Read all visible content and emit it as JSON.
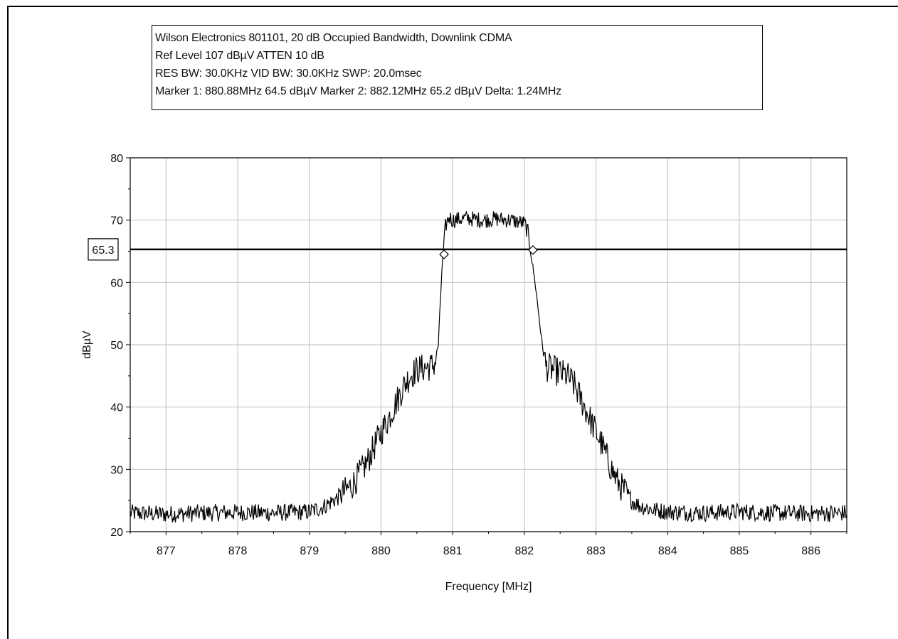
{
  "info_box": {
    "line1": "Wilson Electronics 801101, 20 dB Occupied Bandwidth, Downlink CDMA",
    "line2": "Ref Level 107 dBµV    ATTEN 10 dB",
    "line3": "RES BW: 30.0KHz  VID BW: 30.0KHz  SWP: 20.0msec",
    "line4": "Marker 1: 880.88MHz  64.5 dBµV    Marker 2: 882.12MHz  65.2 dBµV Delta: 1.24MHz"
  },
  "chart_data": {
    "type": "line",
    "title": "",
    "xlabel": "Frequency [MHz]",
    "ylabel": "dBµV",
    "xlim": [
      876.5,
      886.5
    ],
    "ylim": [
      20,
      80
    ],
    "x_ticks": [
      "877",
      "878",
      "879",
      "880",
      "881",
      "882",
      "883",
      "884",
      "885",
      "886"
    ],
    "y_ticks": [
      "20",
      "30",
      "40",
      "50",
      "60",
      "70",
      "80"
    ],
    "grid": true,
    "reference_line": {
      "value": 65.3,
      "label": "65.3"
    },
    "markers": [
      {
        "name": "Marker 1",
        "x": 880.88,
        "y": 64.5
      },
      {
        "name": "Marker 2",
        "x": 882.12,
        "y": 65.2
      }
    ],
    "series": [
      {
        "color": "#000000",
        "x": [
          876.5,
          877.0,
          877.5,
          878.0,
          878.5,
          879.0,
          879.2,
          879.4,
          879.6,
          879.8,
          880.0,
          880.1,
          880.2,
          880.3,
          880.4,
          880.5,
          880.6,
          880.7,
          880.75,
          880.8,
          880.85,
          880.9,
          880.95,
          881.0,
          881.2,
          881.4,
          881.6,
          881.8,
          882.0,
          882.05,
          882.1,
          882.15,
          882.2,
          882.25,
          882.3,
          882.4,
          882.5,
          882.6,
          882.7,
          882.8,
          882.9,
          883.0,
          883.1,
          883.2,
          883.3,
          883.4,
          883.5,
          883.6,
          883.8,
          884.0,
          884.5,
          885.0,
          885.5,
          886.0,
          886.5
        ],
        "y": [
          23.0,
          22.8,
          23.0,
          23.1,
          23.0,
          23.2,
          24.0,
          25.5,
          27.5,
          31.0,
          36.0,
          38.0,
          40.5,
          43.0,
          45.0,
          46.0,
          46.3,
          46.5,
          47.0,
          50.0,
          62.0,
          69.0,
          70.5,
          70.0,
          70.3,
          70.0,
          70.2,
          70.0,
          69.5,
          68.0,
          64.0,
          60.0,
          55.0,
          50.0,
          46.5,
          46.0,
          45.5,
          45.0,
          43.5,
          41.0,
          38.5,
          36.0,
          33.5,
          30.5,
          28.0,
          26.5,
          25.0,
          24.2,
          23.5,
          23.2,
          23.0,
          23.2,
          23.0,
          22.9,
          23.0
        ]
      }
    ]
  }
}
